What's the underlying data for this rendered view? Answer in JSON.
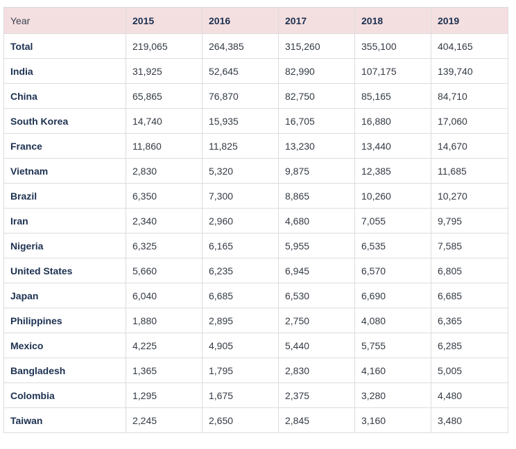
{
  "table": {
    "columns": [
      "Year",
      "2015",
      "2016",
      "2017",
      "2018",
      "2019"
    ],
    "rows": [
      {
        "label": "Total",
        "values": [
          "219,065",
          "264,385",
          "315,260",
          "355,100",
          "404,165"
        ]
      },
      {
        "label": "India",
        "values": [
          "31,925",
          "52,645",
          "82,990",
          "107,175",
          "139,740"
        ]
      },
      {
        "label": "China",
        "values": [
          "65,865",
          "76,870",
          "82,750",
          "85,165",
          "84,710"
        ]
      },
      {
        "label": "South Korea",
        "values": [
          "14,740",
          "15,935",
          "16,705",
          "16,880",
          "17,060"
        ]
      },
      {
        "label": "France",
        "values": [
          "11,860",
          "11,825",
          "13,230",
          "13,440",
          "14,670"
        ]
      },
      {
        "label": "Vietnam",
        "values": [
          "2,830",
          "5,320",
          "9,875",
          "12,385",
          "11,685"
        ]
      },
      {
        "label": "Brazil",
        "values": [
          "6,350",
          "7,300",
          "8,865",
          "10,260",
          "10,270"
        ]
      },
      {
        "label": "Iran",
        "values": [
          "2,340",
          "2,960",
          "4,680",
          "7,055",
          "9,795"
        ]
      },
      {
        "label": "Nigeria",
        "values": [
          "6,325",
          "6,165",
          "5,955",
          "6,535",
          "7,585"
        ]
      },
      {
        "label": "United States",
        "values": [
          "5,660",
          "6,235",
          "6,945",
          "6,570",
          "6,805"
        ]
      },
      {
        "label": "Japan",
        "values": [
          "6,040",
          "6,685",
          "6,530",
          "6,690",
          "6,685"
        ]
      },
      {
        "label": "Philippines",
        "values": [
          "1,880",
          "2,895",
          "2,750",
          "4,080",
          "6,365"
        ]
      },
      {
        "label": "Mexico",
        "values": [
          "4,225",
          "4,905",
          "5,440",
          "5,755",
          "6,285"
        ]
      },
      {
        "label": "Bangladesh",
        "values": [
          "1,365",
          "1,795",
          "2,830",
          "4,160",
          "5,005"
        ]
      },
      {
        "label": "Colombia",
        "values": [
          "1,295",
          "1,675",
          "2,375",
          "3,280",
          "4,480"
        ]
      },
      {
        "label": "Taiwan",
        "values": [
          "2,245",
          "2,650",
          "2,845",
          "3,160",
          "3,480"
        ]
      }
    ]
  }
}
